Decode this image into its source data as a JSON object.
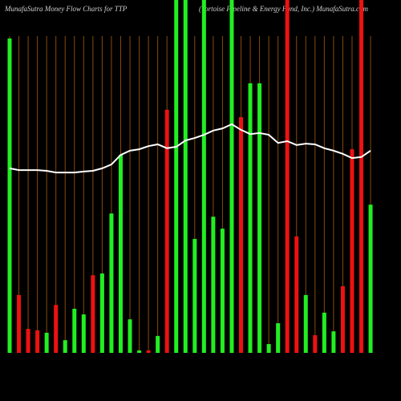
{
  "chart_data": {
    "type": "bar",
    "title": "MunafaSutra  Money Flow  Charts for TTP",
    "subtitle": "(Tortoise Pipeline & Energy Fund, Inc.) MunafaSutra.com",
    "ylim": [
      0,
      100
    ],
    "series": [
      {
        "name": "Money Flow",
        "values": [
          89.1,
          16.4,
          6.8,
          6.4,
          5.7,
          13.6,
          3.6,
          12.5,
          10.9,
          22,
          22.5,
          39.5,
          56.1,
          9.5,
          0.7,
          0.7,
          4.8,
          68.9,
          100,
          100,
          32.3,
          100,
          38.6,
          35.2,
          100,
          66.8,
          76.4,
          76.4,
          2.5,
          8.4,
          100,
          33,
          16.4,
          5,
          11.4,
          6.1,
          18.9,
          57.7,
          100,
          42
        ],
        "colors": [
          "#22ee22",
          "#ee1111",
          "#ee1111",
          "#ee1111",
          "#22ee22",
          "#ee1111",
          "#22ee22",
          "#22ee22",
          "#22ee22",
          "#ee1111",
          "#22ee22",
          "#22ee22",
          "#22ee22",
          "#22ee22",
          "#22ee22",
          "#ee1111",
          "#22ee22",
          "#ee1111",
          "#22ee22",
          "#22ee22",
          "#22ee22",
          "#22ee22",
          "#22ee22",
          "#22ee22",
          "#22ee22",
          "#ee1111",
          "#22ee22",
          "#22ee22",
          "#22ee22",
          "#22ee22",
          "#ee1111",
          "#ee1111",
          "#22ee22",
          "#ee1111",
          "#22ee22",
          "#22ee22",
          "#ee1111",
          "#ee1111",
          "#ee1111",
          "#22ee22"
        ]
      },
      {
        "name": "Price",
        "type": "line",
        "color": "#ffffff",
        "values": [
          52.3,
          51.8,
          51.8,
          51.8,
          51.6,
          51.1,
          51.1,
          51.1,
          51.4,
          51.6,
          52.3,
          53.4,
          56.1,
          57.3,
          57.7,
          58.6,
          59.1,
          58,
          58.4,
          60.2,
          60.9,
          61.8,
          63,
          63.6,
          64.8,
          63.2,
          62,
          62.3,
          61.8,
          59.5,
          60,
          58.9,
          59.3,
          59.1,
          58,
          57.3,
          56.4,
          55.2,
          55.5,
          57.3
        ]
      }
    ]
  }
}
